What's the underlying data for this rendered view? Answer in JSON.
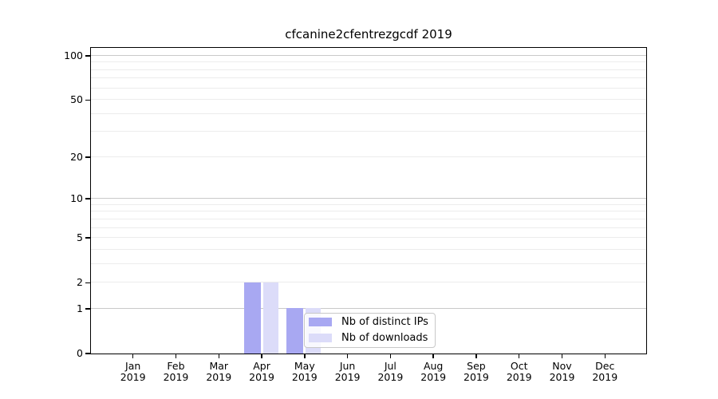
{
  "chart_data": {
    "type": "bar",
    "title": "cfcanine2cfentrezgcdf 2019",
    "categories": [
      "Jan",
      "Feb",
      "Mar",
      "Apr",
      "May",
      "Jun",
      "Jul",
      "Aug",
      "Sep",
      "Oct",
      "Nov",
      "Dec"
    ],
    "year_label": "2019",
    "series": [
      {
        "name": "Nb of distinct IPs",
        "color": "#a8a8f2",
        "values": [
          0,
          0,
          0,
          2,
          1,
          0,
          0,
          0,
          0,
          0,
          0,
          0
        ]
      },
      {
        "name": "Nb of downloads",
        "color": "#dcdcf9",
        "values": [
          0,
          0,
          0,
          2,
          1,
          0,
          0,
          0,
          0,
          0,
          0,
          0
        ]
      }
    ],
    "xlabel": "",
    "ylabel": "",
    "yscale": "log1p",
    "ylim": [
      0,
      113
    ],
    "yticks": [
      0,
      1,
      2,
      5,
      10,
      20,
      50,
      100
    ],
    "grid_major": [
      1,
      10,
      100
    ],
    "grid_minor": [
      2,
      3,
      4,
      5,
      6,
      7,
      8,
      9,
      20,
      30,
      40,
      50,
      60,
      70,
      80,
      90
    ],
    "legend_position": "lower right inside plot",
    "styles": {
      "grid_color_minor": "#ececec",
      "grid_color_major": "#c9c9c9",
      "axis_color": "#000000",
      "text_color": "#000000",
      "legend_border_color": "#c8c8c8",
      "legend_background": "rgba(255,255,255,0.8)",
      "figure_background": "#ffffff"
    }
  }
}
